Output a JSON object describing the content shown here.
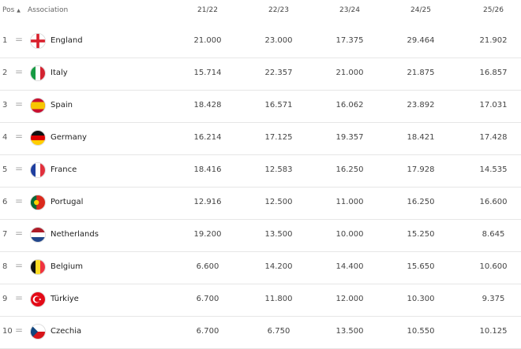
{
  "header": {
    "pos": "Pos",
    "sort_icon": "sort-asc-icon",
    "association": "Association",
    "seasons": [
      "21/22",
      "22/23",
      "23/24",
      "24/25",
      "25/26"
    ]
  },
  "rows": [
    {
      "pos": "1",
      "change": "=",
      "name": "England",
      "flag": "england",
      "values": [
        "21.000",
        "23.000",
        "17.375",
        "29.464",
        "21.902"
      ]
    },
    {
      "pos": "2",
      "change": "=",
      "name": "Italy",
      "flag": "italy",
      "values": [
        "15.714",
        "22.357",
        "21.000",
        "21.875",
        "16.857"
      ]
    },
    {
      "pos": "3",
      "change": "=",
      "name": "Spain",
      "flag": "spain",
      "values": [
        "18.428",
        "16.571",
        "16.062",
        "23.892",
        "17.031"
      ]
    },
    {
      "pos": "4",
      "change": "=",
      "name": "Germany",
      "flag": "germany",
      "values": [
        "16.214",
        "17.125",
        "19.357",
        "18.421",
        "17.428"
      ]
    },
    {
      "pos": "5",
      "change": "=",
      "name": "France",
      "flag": "france",
      "values": [
        "18.416",
        "12.583",
        "16.250",
        "17.928",
        "14.535"
      ]
    },
    {
      "pos": "6",
      "change": "=",
      "name": "Portugal",
      "flag": "portugal",
      "values": [
        "12.916",
        "12.500",
        "11.000",
        "16.250",
        "16.600"
      ]
    },
    {
      "pos": "7",
      "change": "=",
      "name": "Netherlands",
      "flag": "netherlands",
      "values": [
        "19.200",
        "13.500",
        "10.000",
        "15.250",
        "8.645"
      ]
    },
    {
      "pos": "8",
      "change": "=",
      "name": "Belgium",
      "flag": "belgium",
      "values": [
        "6.600",
        "14.200",
        "14.400",
        "15.650",
        "10.600"
      ]
    },
    {
      "pos": "9",
      "change": "=",
      "name": "Türkiye",
      "flag": "turkiye",
      "values": [
        "6.700",
        "11.800",
        "12.000",
        "10.300",
        "9.375"
      ]
    },
    {
      "pos": "10",
      "change": "=",
      "name": "Czechia",
      "flag": "czechia",
      "values": [
        "6.700",
        "6.750",
        "13.500",
        "10.550",
        "10.125"
      ]
    }
  ]
}
